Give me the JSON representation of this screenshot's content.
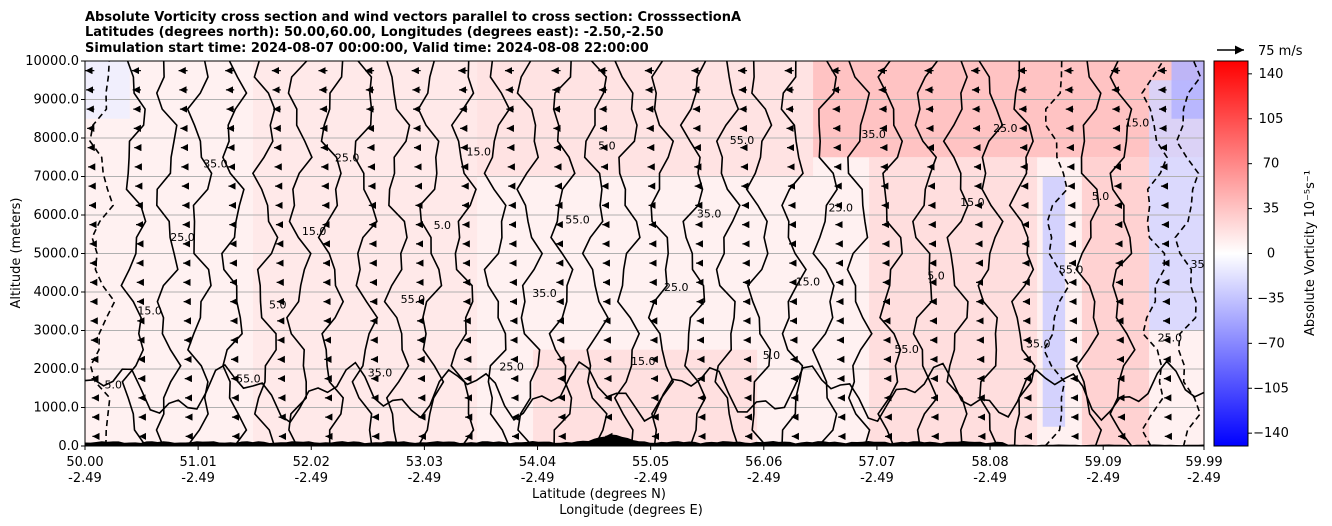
{
  "chart_data": {
    "type": "heatmap",
    "title_lines": [
      "Absolute Vorticity cross section and wind vectors parallel to cross section: CrosssectionA",
      "Latitudes (degrees north): 50.00,60.00, Longitudes (degrees east): -2.50,-2.50",
      "Simulation start time: 2024-08-07 00:00:00, Valid time: 2024-08-08 22:00:00"
    ],
    "ylabel": "Altitude (meters)",
    "xlabel_lines": [
      "Latitude (degrees N)",
      "Longitude (degrees E)"
    ],
    "y_ticks": [
      "0.0",
      "1000.0",
      "2000.0",
      "3000.0",
      "4000.0",
      "5000.0",
      "6000.0",
      "7000.0",
      "8000.0",
      "9000.0",
      "10000.0"
    ],
    "ylim": [
      0,
      10000
    ],
    "x_ticks": [
      {
        "lat": "50.00",
        "lon": "-2.49"
      },
      {
        "lat": "51.01",
        "lon": "-2.49"
      },
      {
        "lat": "52.02",
        "lon": "-2.49"
      },
      {
        "lat": "53.03",
        "lon": "-2.49"
      },
      {
        "lat": "54.04",
        "lon": "-2.49"
      },
      {
        "lat": "55.05",
        "lon": "-2.49"
      },
      {
        "lat": "56.06",
        "lon": "-2.49"
      },
      {
        "lat": "57.07",
        "lon": "-2.49"
      },
      {
        "lat": "58.08",
        "lon": "-2.49"
      },
      {
        "lat": "59.09",
        "lon": "-2.49"
      },
      {
        "lat": "59.99",
        "lon": "-2.49"
      }
    ],
    "xlim_lat": [
      50.0,
      59.99
    ],
    "grid": "horizontal",
    "colorbar": {
      "label": "Absolute Vorticity 10⁻⁵s⁻¹",
      "ticks": [
        "140",
        "105",
        "70",
        "35",
        "0",
        "−35",
        "−70",
        "−105",
        "−140"
      ],
      "range": [
        -150,
        150
      ],
      "colormap": "bwr",
      "color_min": "#0000ff",
      "color_mid": "#ffffff",
      "color_max": "#ff0000"
    },
    "quiver_key": "75 m/s",
    "contour_labels": [
      "5.0",
      "15.0",
      "25.0",
      "35.0",
      "55.0"
    ],
    "regions": [
      {
        "lat": [
          50.0,
          59.99
        ],
        "alt": [
          0,
          10000
        ],
        "value": 10
      },
      {
        "lat": [
          51.5,
          53.5
        ],
        "alt": [
          0,
          10000
        ],
        "value": 14
      },
      {
        "lat": [
          53.5,
          56.5
        ],
        "alt": [
          7000,
          10000
        ],
        "value": 18
      },
      {
        "lat": [
          56.5,
          59.99
        ],
        "alt": [
          7500,
          10000
        ],
        "value": 40
      },
      {
        "lat": [
          57.0,
          58.5
        ],
        "alt": [
          0,
          7500
        ],
        "value": 22
      },
      {
        "lat": [
          54.0,
          56.0
        ],
        "alt": [
          0,
          2500
        ],
        "value": 20
      },
      {
        "lat": [
          58.9,
          59.5
        ],
        "alt": [
          0,
          7500
        ],
        "value": 30
      },
      {
        "lat": [
          58.55,
          58.75
        ],
        "alt": [
          500,
          7000
        ],
        "value": -30
      },
      {
        "lat": [
          59.5,
          59.99
        ],
        "alt": [
          3000,
          9500
        ],
        "value": -25
      },
      {
        "lat": [
          50.0,
          50.4
        ],
        "alt": [
          8500,
          10000
        ],
        "value": -10
      },
      {
        "lat": [
          59.7,
          59.99
        ],
        "alt": [
          8500,
          10000
        ],
        "value": -45
      }
    ],
    "wind_vectors": {
      "u_m_s_by_altitude": [
        {
          "alt": 0,
          "u": -5
        },
        {
          "alt": 3000,
          "u": -10
        },
        {
          "alt": 6000,
          "u": -14
        },
        {
          "alt": 9000,
          "u": -22
        },
        {
          "alt": 10000,
          "u": -26
        }
      ]
    }
  }
}
